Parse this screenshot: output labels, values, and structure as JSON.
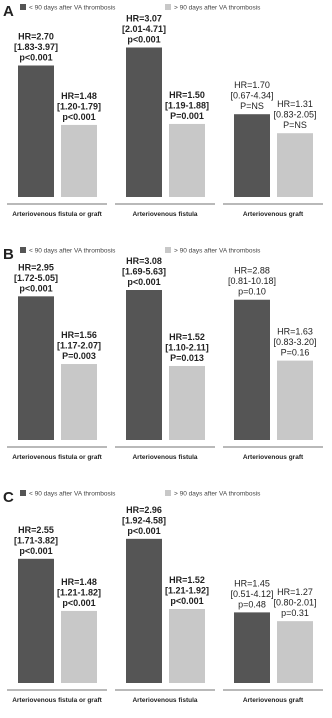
{
  "chart_data": [
    {
      "type": "bar",
      "panel": "A",
      "categories": [
        "Arteriovenous fistula or graft",
        "Arteriovenous fistula",
        "Arteriovenous graft"
      ],
      "bold_labels": [
        true,
        true,
        false
      ],
      "series": [
        {
          "name": "< 90 days after VA thrombosis",
          "color": "#555555",
          "values": [
            2.7,
            3.07,
            1.7
          ],
          "value_labels": [
            "HR=2.70",
            "HR=3.07",
            "HR=1.70"
          ],
          "ci_labels": [
            "[1.83-3.97]",
            "[2.01-4.71]",
            "[0.67-4.34]"
          ],
          "p_labels": [
            "p<0.001",
            "p<0.001",
            "P=NS"
          ]
        },
        {
          "name": "> 90 days after VA thrombosis",
          "color": "#c8c8c8",
          "values": [
            1.48,
            1.5,
            1.31
          ],
          "value_labels": [
            "HR=1.48",
            "HR=1.50",
            "HR=1.31"
          ],
          "ci_labels": [
            "[1.20-1.79]",
            "[1.19-1.88]",
            "[0.83-2.05]"
          ],
          "p_labels": [
            "p<0.001",
            "P=0.001",
            "P=NS"
          ]
        }
      ]
    },
    {
      "type": "bar",
      "panel": "B",
      "categories": [
        "Arteriovenous fistula or graft",
        "Arteriovenous fistula",
        "Arteriovenous graft"
      ],
      "bold_labels": [
        true,
        true,
        false
      ],
      "series": [
        {
          "name": "< 90 days after VA thrombosis",
          "color": "#555555",
          "values": [
            2.95,
            3.08,
            2.88
          ],
          "value_labels": [
            "HR=2.95",
            "HR=3.08",
            "HR=2.88"
          ],
          "ci_labels": [
            "[1.72-5.05]",
            "[1.69-5.63]",
            "[0.81-10.18]"
          ],
          "p_labels": [
            "p<0.001",
            "p<0.001",
            "p=0.10"
          ]
        },
        {
          "name": "> 90 days after VA thrombosis",
          "color": "#c8c8c8",
          "values": [
            1.56,
            1.52,
            1.63
          ],
          "value_labels": [
            "HR=1.56",
            "HR=1.52",
            "HR=1.63"
          ],
          "ci_labels": [
            "[1.17-2.07]",
            "[1.10-2.11]",
            "[0.83-3.20]"
          ],
          "p_labels": [
            "P=0.003",
            "P=0.013",
            "P=0.16"
          ]
        }
      ]
    },
    {
      "type": "bar",
      "panel": "C",
      "categories": [
        "Arteriovenous fistula or graft",
        "Arteriovenous fistula",
        "Arteriovenous graft"
      ],
      "bold_labels": [
        true,
        true,
        false
      ],
      "series": [
        {
          "name": "< 90 days after VA thrombosis",
          "color": "#555555",
          "values": [
            2.55,
            2.96,
            1.45
          ],
          "value_labels": [
            "HR=2.55",
            "HR=2.96",
            "HR=1.45"
          ],
          "ci_labels": [
            "[1.71-3.82]",
            "[1.92-4.58]",
            "[0.51-4.12]"
          ],
          "p_labels": [
            "p<0.001",
            "p<0.001",
            "p=0.48"
          ]
        },
        {
          "name": "> 90 days after VA thrombosis",
          "color": "#c8c8c8",
          "values": [
            1.48,
            1.52,
            1.27
          ],
          "value_labels": [
            "HR=1.48",
            "HR=1.52",
            "HR=1.27"
          ],
          "ci_labels": [
            "[1.21-1.82]",
            "[1.21-1.92]",
            "[0.80-2.01]"
          ],
          "p_labels": [
            "p<0.001",
            "p<0.001",
            "p=0.31"
          ]
        }
      ]
    }
  ]
}
